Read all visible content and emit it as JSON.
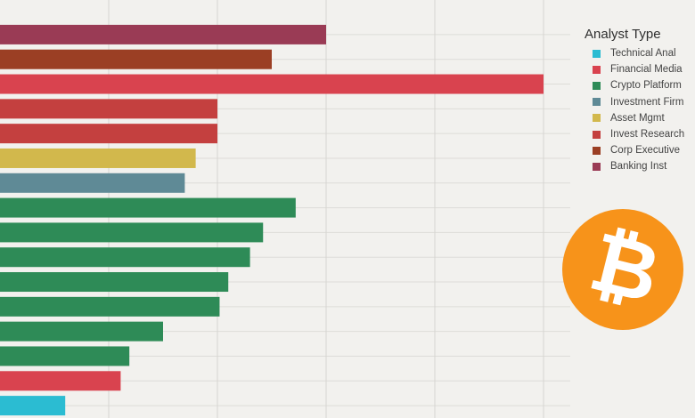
{
  "chart_data": {
    "type": "bar",
    "orientation": "horizontal",
    "legend": {
      "title": "Analyst Type",
      "entries": [
        {
          "name": "Technical Anal",
          "color": "#2bbcd2"
        },
        {
          "name": "Financial Media",
          "color": "#d9434f"
        },
        {
          "name": "Crypto Platform",
          "color": "#2e8b57"
        },
        {
          "name": "Investment Firm",
          "color": "#5f8a96"
        },
        {
          "name": "Asset Mgmt",
          "color": "#d2b84c"
        },
        {
          "name": "Invest Research",
          "color": "#c4403f"
        },
        {
          "name": "Corp Executive",
          "color": "#9b3f24"
        },
        {
          "name": "Banking Inst",
          "color": "#9a3b55"
        }
      ],
      "placement": "top-right"
    },
    "bars": [
      {
        "category": "Banking Inst",
        "value": 300
      },
      {
        "category": "Corp Executive",
        "value": 250
      },
      {
        "category": "Financial Media",
        "value": 500
      },
      {
        "category": "Invest Research",
        "value": 200
      },
      {
        "category": "Invest Research",
        "value": 200
      },
      {
        "category": "Asset Mgmt",
        "value": 180
      },
      {
        "category": "Investment Firm",
        "value": 170
      },
      {
        "category": "Crypto Platform",
        "value": 272
      },
      {
        "category": "Crypto Platform",
        "value": 242
      },
      {
        "category": "Crypto Platform",
        "value": 230
      },
      {
        "category": "Crypto Platform",
        "value": 210
      },
      {
        "category": "Crypto Platform",
        "value": 202
      },
      {
        "category": "Crypto Platform",
        "value": 150
      },
      {
        "category": "Crypto Platform",
        "value": 119
      },
      {
        "category": "Financial Media",
        "value": 111
      },
      {
        "category": "Technical Anal",
        "value": 60
      }
    ],
    "xlim": [
      0,
      525
    ],
    "x_gridlines": [
      100,
      200,
      300,
      400,
      500
    ],
    "grid": true,
    "title": "",
    "xlabel": "",
    "ylabel": ""
  },
  "logo": {
    "name": "bitcoin-icon",
    "glyph": "₿",
    "color": "#f7931a"
  }
}
